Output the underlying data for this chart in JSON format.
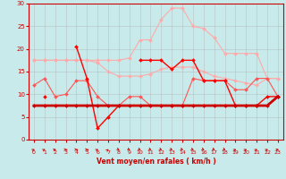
{
  "x": [
    0,
    1,
    2,
    3,
    4,
    5,
    6,
    7,
    8,
    9,
    10,
    11,
    12,
    13,
    14,
    15,
    16,
    17,
    18,
    19,
    20,
    21,
    22,
    23
  ],
  "series": [
    {
      "name": "rafales_light",
      "y": [
        17.5,
        17.5,
        17.5,
        17.5,
        17.5,
        17.5,
        17.5,
        17.5,
        17.5,
        18.0,
        22.0,
        22.0,
        26.5,
        29.0,
        29.0,
        25.0,
        24.5,
        22.5,
        19.0,
        19.0,
        19.0,
        19.0,
        13.5,
        13.5
      ],
      "color": "#ffaaaa",
      "marker": "D",
      "markersize": 2.0,
      "linewidth": 0.8
    },
    {
      "name": "vent_light",
      "y": [
        17.5,
        17.5,
        17.5,
        17.5,
        17.5,
        17.5,
        17.0,
        15.0,
        14.0,
        14.0,
        14.0,
        14.5,
        15.5,
        16.0,
        16.0,
        16.0,
        15.0,
        14.0,
        13.5,
        13.0,
        12.5,
        12.0,
        13.5,
        13.5
      ],
      "color": "#ffaaaa",
      "marker": "D",
      "markersize": 2.0,
      "linewidth": 0.8
    },
    {
      "name": "vent_med",
      "y": [
        12.0,
        13.5,
        9.5,
        10.0,
        13.0,
        13.0,
        9.5,
        7.5,
        7.5,
        9.5,
        9.5,
        7.5,
        7.5,
        7.5,
        7.5,
        13.5,
        13.0,
        13.0,
        13.0,
        11.0,
        11.0,
        13.5,
        13.5,
        9.5
      ],
      "color": "#ff5555",
      "marker": "D",
      "markersize": 2.0,
      "linewidth": 0.8
    },
    {
      "name": "rafales_dark",
      "y": [
        null,
        9.5,
        null,
        null,
        20.5,
        13.5,
        2.5,
        5.0,
        7.5,
        null,
        17.5,
        17.5,
        17.5,
        15.5,
        17.5,
        17.5,
        13.0,
        13.0,
        13.0,
        7.5,
        7.5,
        7.5,
        9.5,
        9.5
      ],
      "color": "#ff0000",
      "marker": "D",
      "markersize": 2.0,
      "linewidth": 1.0
    },
    {
      "name": "vent_dark",
      "y": [
        7.5,
        7.5,
        7.5,
        7.5,
        7.5,
        7.5,
        7.5,
        7.5,
        7.5,
        7.5,
        7.5,
        7.5,
        7.5,
        7.5,
        7.5,
        7.5,
        7.5,
        7.5,
        7.5,
        7.5,
        7.5,
        7.5,
        7.5,
        9.5
      ],
      "color": "#cc0000",
      "marker": "D",
      "markersize": 2.0,
      "linewidth": 2.0
    }
  ],
  "arrow_angles_deg": [
    45,
    45,
    30,
    0,
    0,
    0,
    45,
    60,
    315,
    315,
    315,
    315,
    315,
    315,
    315,
    315,
    315,
    315,
    315,
    45,
    45,
    45,
    45,
    30
  ],
  "bg_color": "#c8eaea",
  "grid_color": "#aaaaaa",
  "xlabel": "Vent moyen/en rafales ( km/h )",
  "ylim": [
    0,
    30
  ],
  "xlim": [
    -0.5,
    23.5
  ],
  "yticks": [
    0,
    5,
    10,
    15,
    20,
    25,
    30
  ],
  "xticks": [
    0,
    1,
    2,
    3,
    4,
    5,
    6,
    7,
    8,
    9,
    10,
    11,
    12,
    13,
    14,
    15,
    16,
    17,
    18,
    19,
    20,
    21,
    22,
    23
  ],
  "tick_color": "#cc0000",
  "label_color": "#cc0000",
  "axis_color": "#cc0000"
}
